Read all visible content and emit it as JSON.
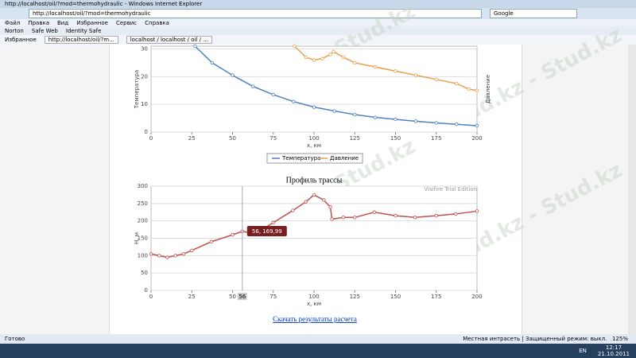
{
  "window": {
    "title": "http://localhost/oil/?mod=thermohydraulic - Windows Internet Explorer",
    "address": "http://localhost/oil/?mod=thermohydraulic",
    "search": "Google",
    "menu": [
      "Файл",
      "Правка",
      "Вид",
      "Избранное",
      "Сервис",
      "Справка"
    ],
    "toolbar": [
      "Norton",
      "Safe Web",
      "Identity Safe"
    ],
    "favorites": "Избранное",
    "tabs": [
      "http://localhost/oil/?m...",
      "localhost / localhost / oil / ..."
    ]
  },
  "watermark": "Stud.kz - Stud.kz",
  "charts": [
    {
      "type": "line",
      "ylabel": "Температура",
      "y2label": "Давление",
      "xlabel": "x, км",
      "xlim": [
        0,
        200
      ],
      "xticks": [
        0,
        25,
        50,
        75,
        100,
        125,
        150,
        175,
        200
      ],
      "ylim": [
        0,
        31
      ],
      "yticks": [
        0,
        10,
        20,
        30
      ],
      "grid": true,
      "series": [
        {
          "name": "Температура",
          "color": "#4f81bd",
          "x": [
            27,
            37.5,
            50,
            62.5,
            75,
            87.5,
            100,
            112.5,
            125,
            137.5,
            150,
            162.5,
            175,
            187.5,
            200
          ],
          "values": [
            31,
            25,
            20.5,
            16.5,
            13.5,
            11,
            9,
            7.6,
            6.3,
            5.3,
            4.6,
            3.9,
            3.3,
            2.8,
            2.3
          ]
        },
        {
          "name": "Давление",
          "color": "#e8a050",
          "x": [
            88,
            95,
            100,
            105,
            110,
            112,
            118,
            125,
            137.5,
            150,
            162.5,
            175,
            187.5,
            195,
            200
          ],
          "values": [
            31,
            27,
            26,
            26.5,
            28,
            29,
            27,
            25,
            23.5,
            22,
            20.5,
            19,
            17.5,
            15.5,
            15
          ]
        }
      ]
    },
    {
      "type": "line",
      "title": "Профиль трассы",
      "note": "Visifire Trial Edition",
      "ylabel": "H, м",
      "xlabel": "x, км",
      "xlim": [
        0,
        200
      ],
      "xticks": [
        0,
        25,
        50,
        75,
        100,
        125,
        150,
        175,
        200
      ],
      "ylim": [
        0,
        300
      ],
      "yticks": [
        0,
        50,
        100,
        150,
        200,
        250,
        300
      ],
      "grid": true,
      "tooltip": "56, 169,99",
      "crosshair": 56,
      "series": [
        {
          "name": "Профиль",
          "color": "#c0504d",
          "x": [
            0,
            5,
            10,
            15,
            20,
            25,
            37,
            50,
            56,
            62,
            68,
            75,
            87,
            95,
            100,
            106,
            110,
            111,
            118,
            125,
            137,
            150,
            162,
            175,
            187,
            200
          ],
          "values": [
            105,
            100,
            95,
            100,
            105,
            115,
            140,
            160,
            170,
            165,
            175,
            195,
            230,
            255,
            275,
            260,
            240,
            205,
            210,
            210,
            225,
            215,
            210,
            215,
            220,
            228
          ]
        }
      ]
    }
  ],
  "link": "Скачать результаты расчета",
  "status": {
    "left": "Готово",
    "zone": "Местная интрасеть | Защищенный режим: выкл.",
    "zoom": "125%"
  },
  "taskbar": {
    "lang": "EN",
    "time": "12:17",
    "date": "21.10.2011"
  }
}
